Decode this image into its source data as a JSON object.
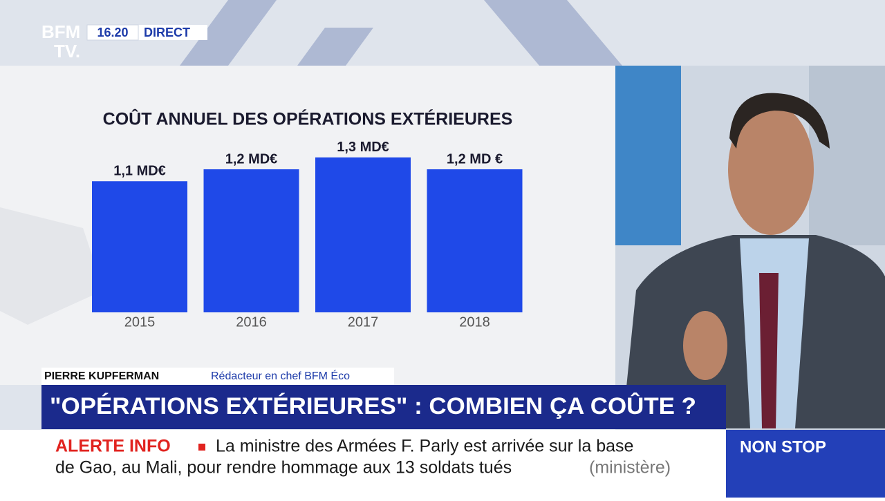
{
  "logo": {
    "top": "BFM",
    "bottom": "TV."
  },
  "clock": "16.20",
  "live": "DIRECT",
  "chart_data": {
    "type": "bar",
    "title": "COÛT ANNUEL DES OPÉRATIONS EXTÉRIEURES",
    "categories": [
      "2015",
      "2016",
      "2017",
      "2018"
    ],
    "values": [
      1.1,
      1.2,
      1.3,
      1.2
    ],
    "value_labels": [
      "1,1 MD€",
      "1,2 MD€",
      "1,3 MD€",
      "1,2 MD €"
    ],
    "color": "#1f49e8"
  },
  "speaker": {
    "name": "PIERRE KUPFERMAN",
    "role": "Rédacteur en chef BFM Éco"
  },
  "headline": "\"OPÉRATIONS EXTÉRIEURES\" : COMBIEN ÇA COÛTE ?",
  "ticker": {
    "label": "ALERTE INFO",
    "lines": [
      "La ministre des Armées F. Parly est arrivée sur la base",
      "de Gao, au Mali, pour rendre hommage aux 13 soldats tués"
    ],
    "source": "(ministère)"
  },
  "channel": "NON STOP"
}
